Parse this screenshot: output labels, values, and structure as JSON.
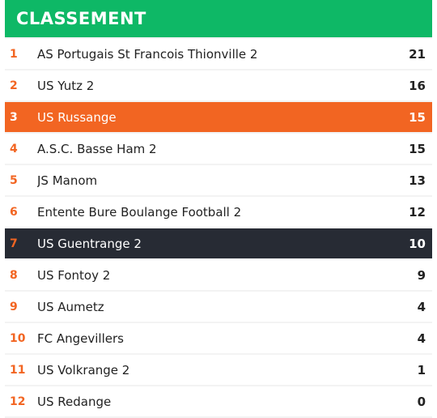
{
  "header": {
    "title": "CLASSEMENT"
  },
  "colors": {
    "header": "#0eb866",
    "accent": "#f26522",
    "dark": "#272b34"
  },
  "standings": [
    {
      "rank": "1",
      "team": "AS Portugais St Francois Thionville 2",
      "points": "21",
      "highlight": ""
    },
    {
      "rank": "2",
      "team": "US Yutz 2",
      "points": "16",
      "highlight": ""
    },
    {
      "rank": "3",
      "team": "US Russange",
      "points": "15",
      "highlight": "orange"
    },
    {
      "rank": "4",
      "team": "A.S.C. Basse Ham 2",
      "points": "15",
      "highlight": ""
    },
    {
      "rank": "5",
      "team": "JS Manom",
      "points": "13",
      "highlight": ""
    },
    {
      "rank": "6",
      "team": "Entente Bure Boulange Football 2",
      "points": "12",
      "highlight": ""
    },
    {
      "rank": "7",
      "team": "US Guentrange 2",
      "points": "10",
      "highlight": "dark"
    },
    {
      "rank": "8",
      "team": "US Fontoy 2",
      "points": "9",
      "highlight": ""
    },
    {
      "rank": "9",
      "team": "US Aumetz",
      "points": "4",
      "highlight": ""
    },
    {
      "rank": "10",
      "team": "FC Angevillers",
      "points": "4",
      "highlight": ""
    },
    {
      "rank": "11",
      "team": "US Volkrange 2",
      "points": "1",
      "highlight": ""
    },
    {
      "rank": "12",
      "team": "US Redange",
      "points": "0",
      "highlight": ""
    }
  ]
}
